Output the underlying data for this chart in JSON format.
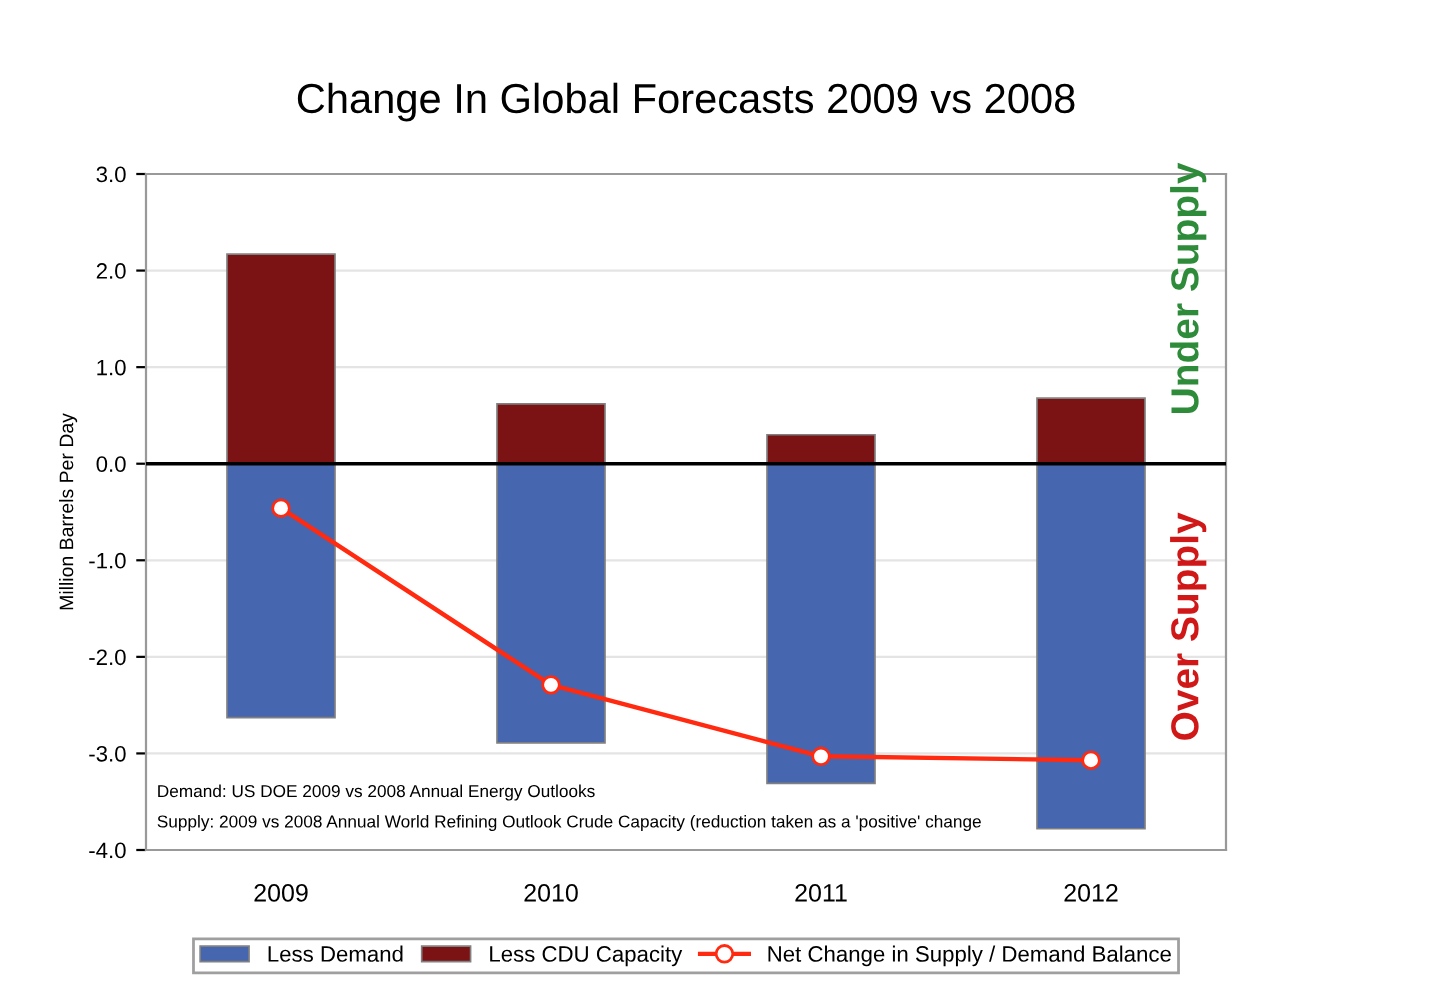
{
  "chart_data": {
    "type": "bar",
    "title": "Change In Global Forecasts 2009 vs 2008",
    "ylabel": "Million Barrels Per Day",
    "categories": [
      "2009",
      "2010",
      "2011",
      "2012"
    ],
    "series": [
      {
        "name": "Less Demand",
        "color": "#4666b0",
        "values": [
          -2.63,
          -2.89,
          -3.31,
          -3.78
        ]
      },
      {
        "name": "Less CDU Capacity",
        "color": "#7b1214",
        "values": [
          2.17,
          0.62,
          0.3,
          0.68
        ]
      },
      {
        "name": "Net Change in Supply / Demand Balance",
        "type": "line",
        "color": "#ff2a10",
        "marker": "circle",
        "values": [
          -0.46,
          -2.29,
          -3.03,
          -3.07
        ]
      }
    ],
    "annotations": [
      "Under Supply",
      "Over Supply",
      "Demand: US DOE 2009 vs 2008 Annual Energy Outlooks",
      "Supply: 2009 vs 2008 Annual World Refining Outlook Crude Capacity (reduction taken as a 'positive' change"
    ],
    "ylim": [
      -4.0,
      3.0
    ],
    "yticks": [
      {
        "value": -4,
        "label": "-4.0"
      },
      {
        "value": -3,
        "label": "-3.0"
      },
      {
        "value": -2,
        "label": "-2.0"
      },
      {
        "value": -1,
        "label": "-1.0"
      },
      {
        "value": 0,
        "label": "0.0"
      },
      {
        "value": 1,
        "label": "1.0"
      },
      {
        "value": 2,
        "label": "2.0"
      },
      {
        "value": 3,
        "label": "3.0"
      }
    ],
    "grid": "y",
    "legend": "bottom",
    "stacked": true
  }
}
